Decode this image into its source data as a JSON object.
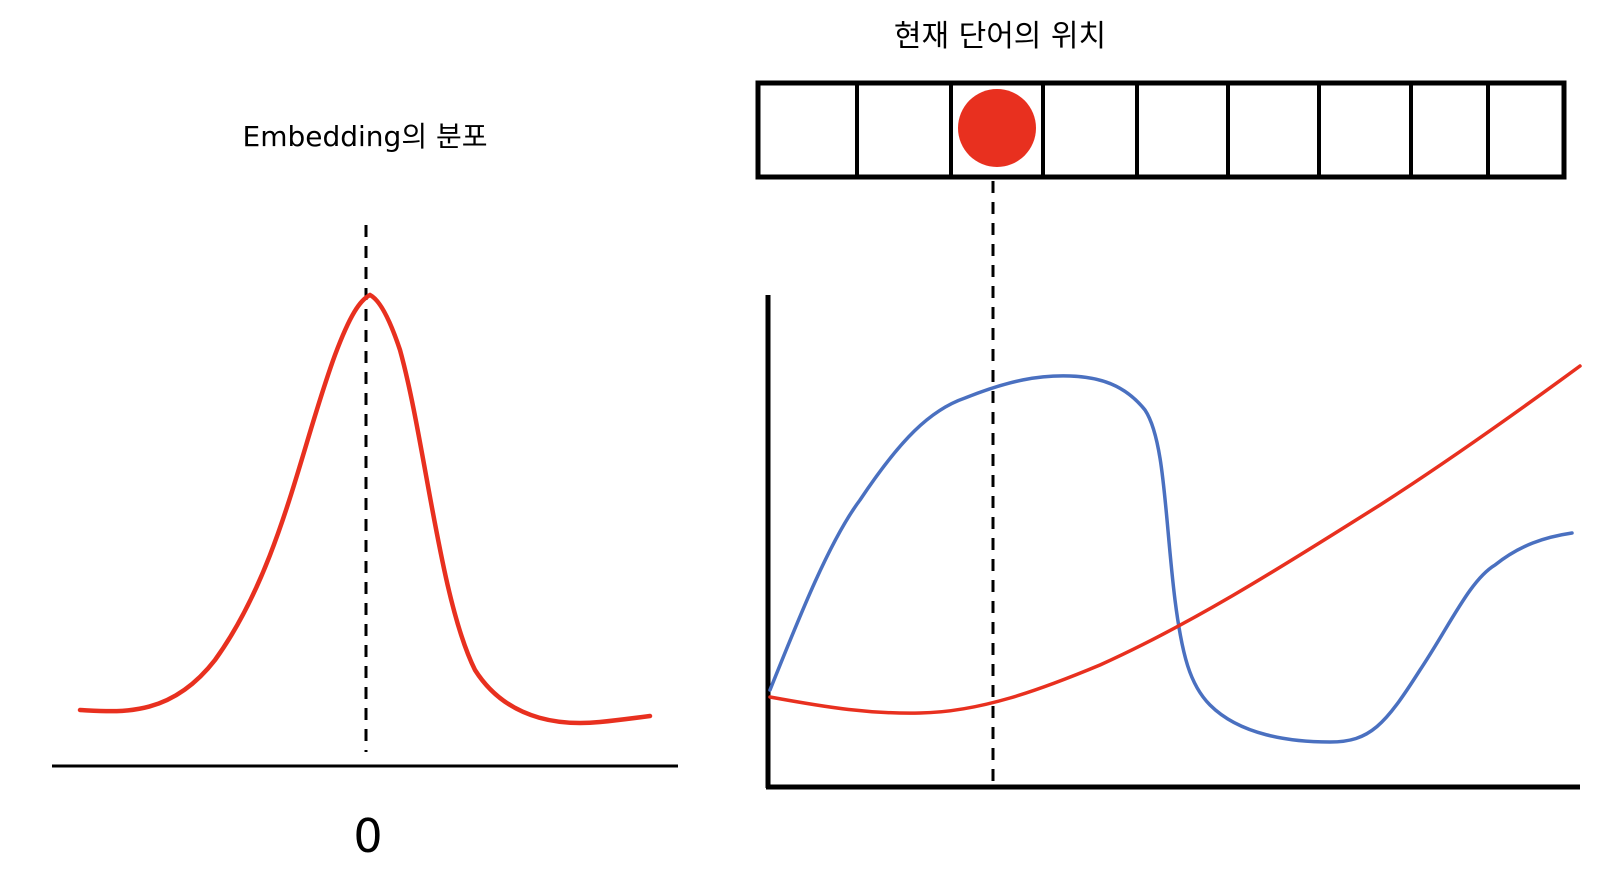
{
  "left_panel": {
    "title": "Embedding의 분포",
    "zero_label": "0",
    "curve_color": "#e8301f"
  },
  "right_panel": {
    "title": "현재 단어의 위치",
    "cells": 9,
    "marker_cell": 2,
    "marker_color": "#e8301f",
    "series": [
      {
        "color": "#4a70c0"
      },
      {
        "color": "#e8301f"
      }
    ]
  }
}
